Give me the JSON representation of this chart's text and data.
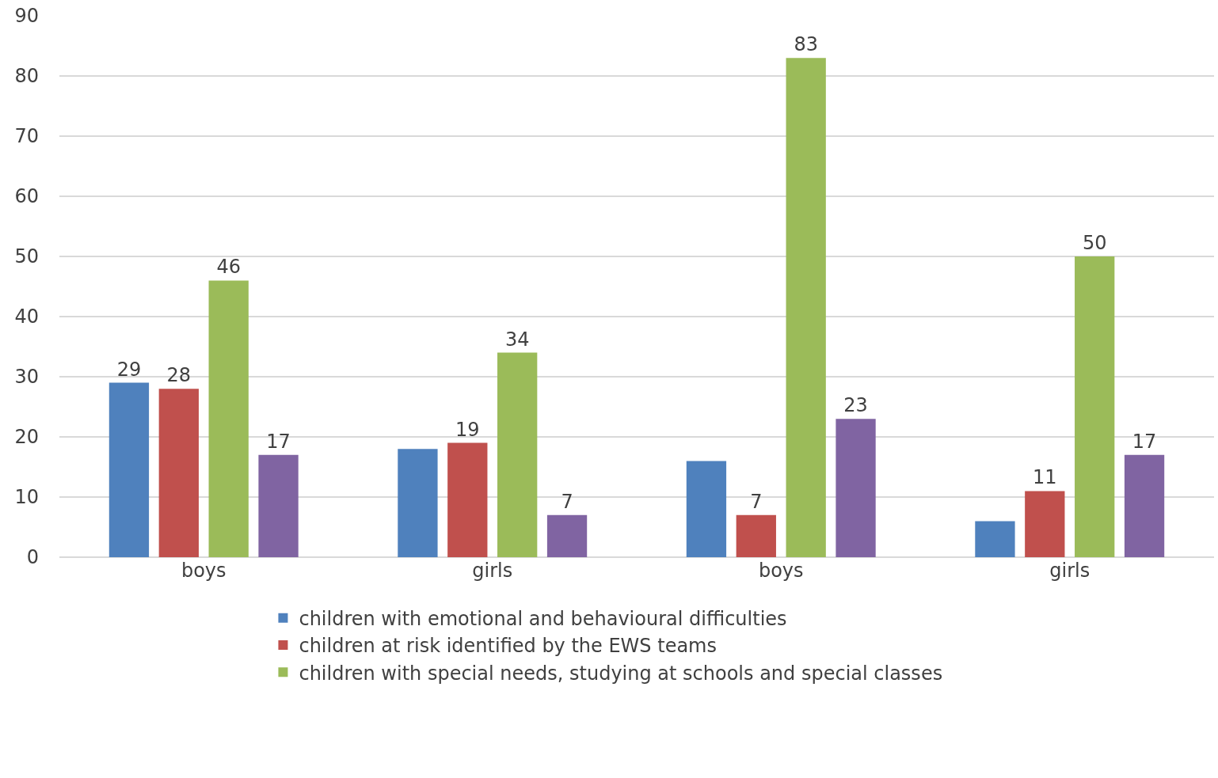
{
  "chart_data": {
    "type": "bar",
    "categories": [
      "boys",
      "girls",
      "boys",
      "girls"
    ],
    "series": [
      {
        "name": "children with emotional and behavioural difficulties",
        "color": "#4f81bd",
        "values": [
          29,
          18,
          16,
          6
        ],
        "value_labels": [
          "29",
          null,
          null,
          null
        ]
      },
      {
        "name": "children at risk identified by the EWS teams",
        "color": "#c0504d",
        "values": [
          28,
          19,
          7,
          11
        ],
        "value_labels": [
          "28",
          "19",
          "7",
          "11"
        ]
      },
      {
        "name": "children with special needs, studying at schools and special classes",
        "color": "#9bbb59",
        "values": [
          46,
          34,
          83,
          50
        ],
        "value_labels": [
          "46",
          "34",
          "83",
          "50"
        ]
      },
      {
        "color": "#8064a2",
        "values": [
          17,
          7,
          23,
          17
        ],
        "value_labels": [
          "17",
          "7",
          "23",
          "17"
        ]
      }
    ],
    "ylim": [
      0,
      90
    ],
    "yticks": [
      0,
      10,
      20,
      30,
      40,
      50,
      60,
      70,
      80,
      90
    ],
    "grid": "y",
    "legend": "bottom"
  }
}
